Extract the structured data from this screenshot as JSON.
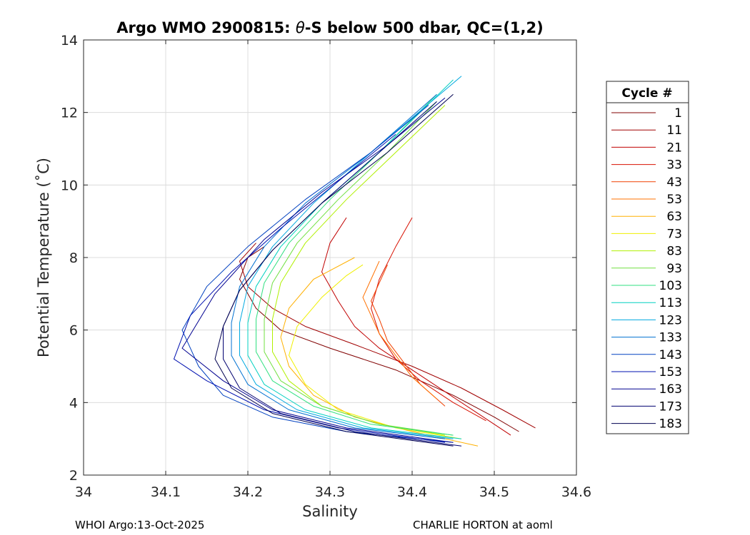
{
  "chart_data": {
    "type": "line",
    "title": "Argo WMO 2900815: θ-S below 500 dbar,  QC=(1,2)",
    "title_prefix": "Argo WMO 2900815: ",
    "title_theta": "θ",
    "title_suffix": "-S below 500 dbar,  QC=(1,2)",
    "xlabel": "Salinity",
    "ylabel": "Potential Temperature (˚C)",
    "xlim": [
      34,
      34.6
    ],
    "ylim": [
      2,
      14
    ],
    "xticks": [
      "34",
      "34.1",
      "34.2",
      "34.3",
      "34.4",
      "34.5",
      "34.6"
    ],
    "yticks": [
      "2",
      "4",
      "6",
      "8",
      "10",
      "12",
      "14"
    ],
    "grid": true,
    "legend_title": "Cycle #",
    "legend_position": "right",
    "series": [
      {
        "name": "1",
        "color": "#800000",
        "s": [
          34.53,
          34.5,
          34.45,
          34.38,
          34.3,
          34.24,
          34.21,
          34.19,
          34.2,
          34.22
        ],
        "t": [
          3.2,
          3.6,
          4.2,
          4.9,
          5.5,
          6.0,
          6.6,
          7.4,
          8.0,
          8.3
        ]
      },
      {
        "name": "11",
        "color": "#a00000",
        "s": [
          34.55,
          34.51,
          34.46,
          34.4,
          34.33,
          34.27,
          34.23,
          34.2,
          34.19,
          34.21
        ],
        "t": [
          3.3,
          3.8,
          4.4,
          5.0,
          5.6,
          6.1,
          6.6,
          7.2,
          7.9,
          8.4
        ]
      },
      {
        "name": "21",
        "color": "#c00000",
        "s": [
          34.52,
          34.48,
          34.44,
          34.4,
          34.36,
          34.33,
          34.31,
          34.29,
          34.3,
          34.32
        ],
        "t": [
          3.1,
          3.7,
          4.3,
          4.9,
          5.5,
          6.1,
          6.8,
          7.6,
          8.4,
          9.1
        ]
      },
      {
        "name": "33",
        "color": "#d81000",
        "s": [
          34.49,
          34.45,
          34.41,
          34.38,
          34.36,
          34.35,
          34.36,
          34.38,
          34.4
        ],
        "t": [
          3.5,
          4.0,
          4.6,
          5.2,
          5.9,
          6.6,
          7.4,
          8.3,
          9.1
        ]
      },
      {
        "name": "43",
        "color": "#f04000",
        "s": [
          34.44,
          34.41,
          34.39,
          34.37,
          34.36,
          34.35,
          34.36,
          34.37
        ],
        "t": [
          3.9,
          4.5,
          5.1,
          5.7,
          6.3,
          6.8,
          7.3,
          7.8
        ]
      },
      {
        "name": "53",
        "color": "#ff7000",
        "s": [
          34.43,
          34.4,
          34.38,
          34.36,
          34.35,
          34.34,
          34.35,
          34.36
        ],
        "t": [
          4.1,
          4.7,
          5.3,
          5.9,
          6.4,
          6.9,
          7.4,
          7.9
        ]
      },
      {
        "name": "63",
        "color": "#ffb000",
        "s": [
          34.48,
          34.4,
          34.33,
          34.28,
          34.25,
          34.24,
          34.25,
          34.28,
          34.33
        ],
        "t": [
          2.8,
          3.2,
          3.6,
          4.2,
          5.0,
          5.8,
          6.6,
          7.4,
          8.0
        ]
      },
      {
        "name": "73",
        "color": "#f0f000",
        "s": [
          34.46,
          34.38,
          34.31,
          34.27,
          34.25,
          34.26,
          34.29,
          34.32,
          34.34
        ],
        "t": [
          3.0,
          3.3,
          3.8,
          4.5,
          5.3,
          6.1,
          6.9,
          7.5,
          7.8
        ]
      },
      {
        "name": "83",
        "color": "#b0f000",
        "s": [
          34.44,
          34.36,
          34.29,
          34.25,
          34.23,
          34.23,
          34.24,
          34.27,
          34.32,
          34.38,
          34.44
        ],
        "t": [
          3.1,
          3.4,
          3.9,
          4.6,
          5.4,
          6.3,
          7.3,
          8.4,
          9.6,
          10.9,
          12.2
        ]
      },
      {
        "name": "93",
        "color": "#70e040",
        "s": [
          34.45,
          34.36,
          34.29,
          34.24,
          34.22,
          34.22,
          34.23,
          34.26,
          34.31,
          34.37,
          34.43
        ],
        "t": [
          3.1,
          3.4,
          3.9,
          4.6,
          5.4,
          6.3,
          7.3,
          8.4,
          9.6,
          10.9,
          12.3
        ]
      },
      {
        "name": "103",
        "color": "#30e080",
        "s": [
          34.45,
          34.35,
          34.28,
          34.23,
          34.21,
          34.21,
          34.22,
          34.25,
          34.3,
          34.36,
          34.43
        ],
        "t": [
          3.1,
          3.4,
          3.9,
          4.6,
          5.4,
          6.3,
          7.3,
          8.4,
          9.6,
          10.9,
          12.5
        ]
      },
      {
        "name": "113",
        "color": "#00d0c0",
        "s": [
          34.46,
          34.35,
          34.27,
          34.22,
          34.2,
          34.2,
          34.21,
          34.24,
          34.29,
          34.36,
          34.45
        ],
        "t": [
          3.0,
          3.3,
          3.8,
          4.5,
          5.3,
          6.2,
          7.2,
          8.3,
          9.5,
          10.9,
          12.9
        ]
      },
      {
        "name": "123",
        "color": "#00a8e0",
        "s": [
          34.45,
          34.34,
          34.26,
          34.21,
          34.19,
          34.19,
          34.2,
          34.23,
          34.28,
          34.35,
          34.46
        ],
        "t": [
          3.0,
          3.3,
          3.8,
          4.5,
          5.3,
          6.2,
          7.2,
          8.3,
          9.5,
          10.9,
          13.0
        ]
      },
      {
        "name": "133",
        "color": "#0070d0",
        "s": [
          34.44,
          34.33,
          34.25,
          34.2,
          34.18,
          34.18,
          34.19,
          34.22,
          34.27,
          34.35,
          34.43
        ],
        "t": [
          3.0,
          3.3,
          3.8,
          4.5,
          5.3,
          6.2,
          7.2,
          8.3,
          9.5,
          10.9,
          12.5
        ]
      },
      {
        "name": "143",
        "color": "#0040c0",
        "s": [
          34.45,
          34.32,
          34.23,
          34.17,
          34.14,
          34.12,
          34.15,
          34.2,
          34.27,
          34.35,
          34.42
        ],
        "t": [
          2.9,
          3.2,
          3.6,
          4.2,
          5.0,
          6.0,
          7.2,
          8.3,
          9.6,
          10.9,
          12.2
        ]
      },
      {
        "name": "153",
        "color": "#0010b0",
        "s": [
          34.44,
          34.31,
          34.22,
          34.15,
          34.11,
          34.13,
          34.18,
          34.24,
          34.31,
          34.38
        ],
        "t": [
          2.9,
          3.3,
          3.8,
          4.6,
          5.2,
          6.4,
          7.6,
          8.8,
          10.1,
          11.4
        ]
      },
      {
        "name": "163",
        "color": "#000090",
        "s": [
          34.45,
          34.32,
          34.23,
          34.17,
          34.12,
          34.16,
          34.22,
          34.29,
          34.37,
          34.44
        ],
        "t": [
          2.9,
          3.3,
          3.8,
          4.6,
          5.5,
          7.0,
          8.5,
          9.8,
          11.1,
          12.4
        ]
      },
      {
        "name": "173",
        "color": "#000070",
        "s": [
          34.46,
          34.33,
          34.24,
          34.19,
          34.17,
          34.17,
          34.19,
          34.23,
          34.29,
          34.36,
          34.43
        ],
        "t": [
          2.8,
          3.2,
          3.7,
          4.4,
          5.2,
          6.1,
          7.1,
          8.2,
          9.5,
          10.9,
          12.3
        ]
      },
      {
        "name": "183",
        "color": "#000050",
        "s": [
          34.45,
          34.32,
          34.23,
          34.18,
          34.16,
          34.17,
          34.19,
          34.23,
          34.29,
          34.37,
          34.45
        ],
        "t": [
          2.8,
          3.2,
          3.7,
          4.4,
          5.2,
          6.1,
          7.1,
          8.2,
          9.5,
          10.9,
          12.5
        ]
      }
    ]
  },
  "footer": {
    "left": "WHOI Argo:13-Oct-2025",
    "right": "CHARLIE HORTON at aoml"
  }
}
